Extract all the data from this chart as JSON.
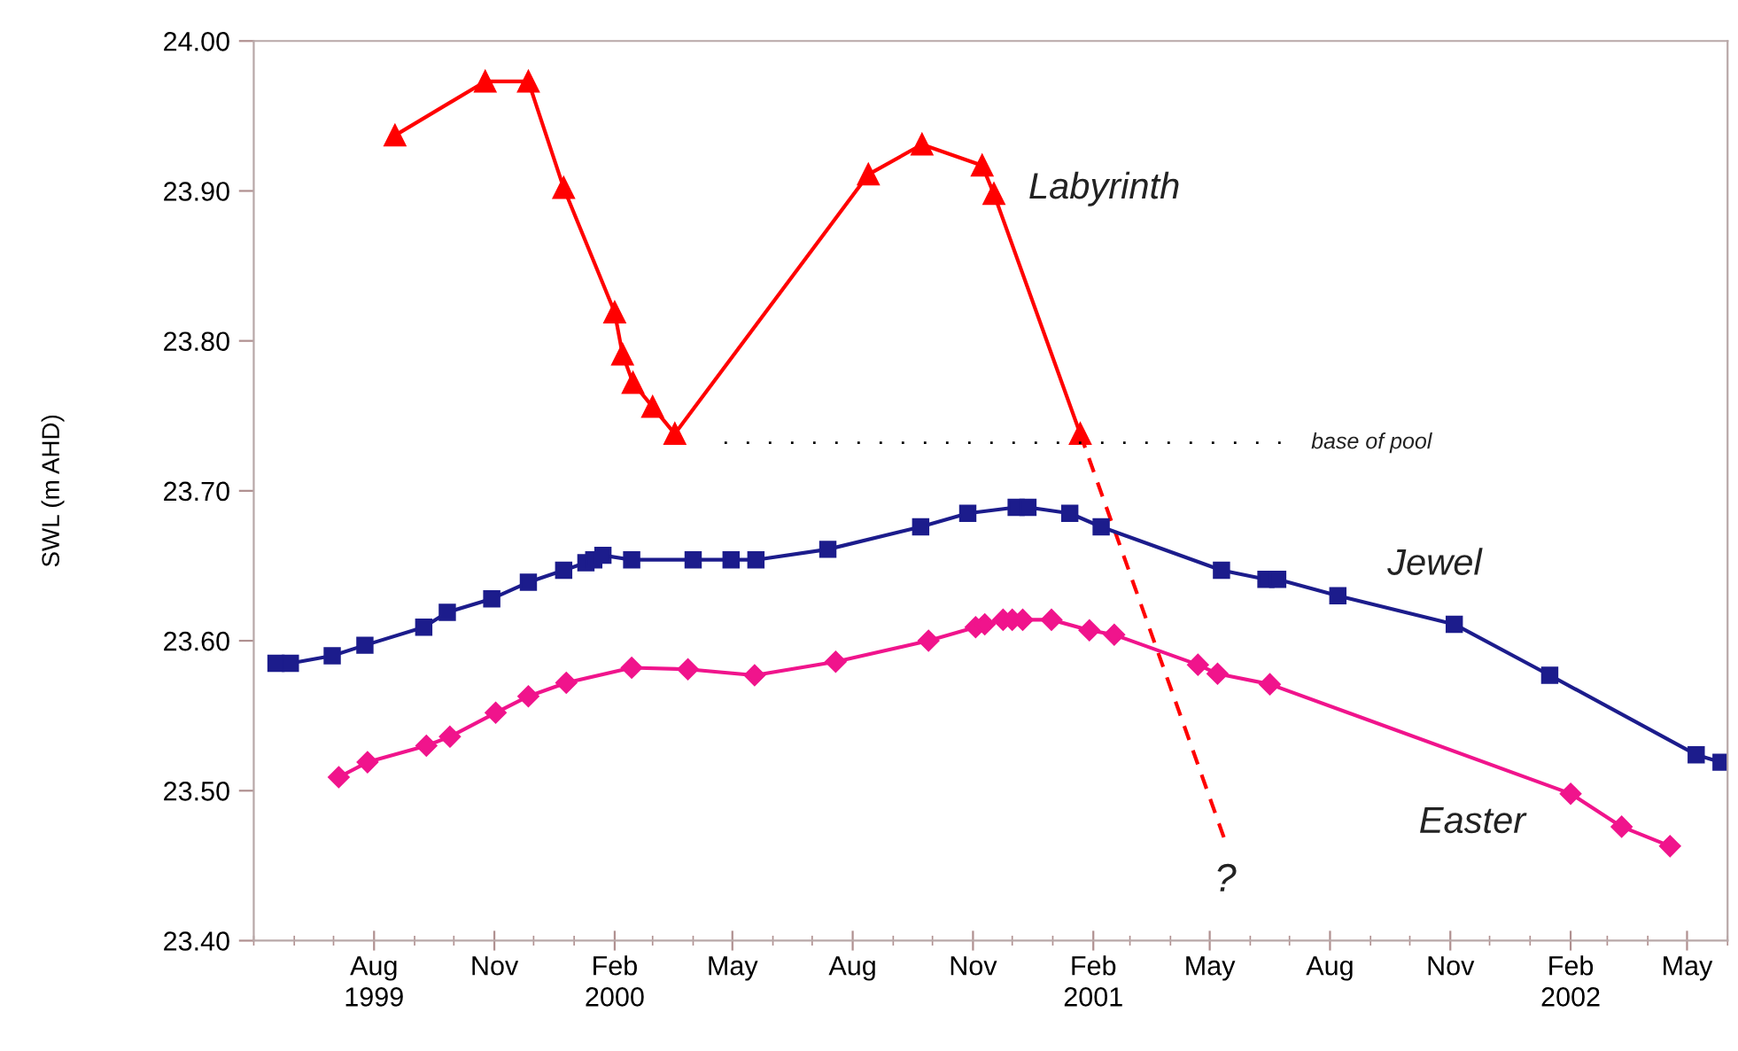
{
  "chart_data": {
    "type": "line",
    "ylabel": "SWL (m AHD)",
    "xlim": [
      "1999-05-01",
      "2002-06-01"
    ],
    "xticks": [
      {
        "value": "1999-08-01",
        "label": "Aug\n1999"
      },
      {
        "value": "1999-11-01",
        "label": "Nov"
      },
      {
        "value": "2000-02-01",
        "label": "Feb\n2000"
      },
      {
        "value": "2000-05-01",
        "label": "May"
      },
      {
        "value": "2000-08-01",
        "label": "Aug"
      },
      {
        "value": "2000-11-01",
        "label": "Nov"
      },
      {
        "value": "2001-02-01",
        "label": "Feb\n2001"
      },
      {
        "value": "2001-05-01",
        "label": "May"
      },
      {
        "value": "2001-08-01",
        "label": "Aug"
      },
      {
        "value": "2001-11-01",
        "label": "Nov"
      },
      {
        "value": "2002-02-01",
        "label": "Feb\n2002"
      },
      {
        "value": "2002-05-01",
        "label": "May"
      }
    ],
    "ylim": [
      23.4,
      24.0
    ],
    "yticks": [
      {
        "value": 23.4,
        "label": "23.40"
      },
      {
        "value": 23.5,
        "label": "23.50"
      },
      {
        "value": 23.6,
        "label": "23.60"
      },
      {
        "value": 23.7,
        "label": "23.70"
      },
      {
        "value": 23.8,
        "label": "23.80"
      },
      {
        "value": 23.9,
        "label": "23.90"
      },
      {
        "value": 24.0,
        "label": "24.00"
      }
    ],
    "grid": false,
    "series": [
      {
        "name": "Labyrinth",
        "color": "#ff0000",
        "marker": "triangle",
        "line_style": "solid",
        "x": [
          "1999-08-17",
          "1999-10-25",
          "1999-11-27",
          "1999-12-24",
          "2000-02-01",
          "2000-02-07",
          "2000-02-15",
          "2000-03-01",
          "2000-03-18",
          "2000-08-13",
          "2000-09-23",
          "2000-11-08",
          "2000-11-17",
          "2001-01-22"
        ],
        "values": [
          23.937,
          23.973,
          23.973,
          23.902,
          23.819,
          23.791,
          23.772,
          23.756,
          23.738,
          23.911,
          23.931,
          23.917,
          23.898,
          23.738
        ]
      },
      {
        "color": "#ff0000",
        "marker": "none",
        "line_style": "dashed",
        "x": [
          "2001-01-22",
          "2001-05-13"
        ],
        "values": [
          23.738,
          23.466
        ]
      },
      {
        "name": "base of pool",
        "color": "#000000",
        "marker": "none",
        "line_style": "dotted",
        "x": [
          "2000-04-25",
          "2001-06-25"
        ],
        "values": [
          23.732,
          23.732
        ]
      },
      {
        "name": "Jewel",
        "color": "#1c1c8c",
        "marker": "square",
        "line_style": "solid",
        "x": [
          "1999-05-18",
          "1999-05-29",
          "1999-06-30",
          "1999-07-25",
          "1999-09-08",
          "1999-09-26",
          "1999-10-30",
          "1999-11-27",
          "1999-12-24",
          "2000-01-10",
          "2000-01-16",
          "2000-01-23",
          "2000-02-14",
          "2000-04-01",
          "2000-04-30",
          "2000-05-19",
          "2000-07-13",
          "2000-09-22",
          "2000-10-28",
          "2000-12-04",
          "2000-12-13",
          "2001-01-14",
          "2001-02-07",
          "2001-05-10",
          "2001-06-13",
          "2001-06-22",
          "2001-08-07",
          "2001-11-04",
          "2002-01-16",
          "2002-05-08",
          "2002-05-27"
        ],
        "values": [
          23.585,
          23.585,
          23.59,
          23.597,
          23.609,
          23.619,
          23.628,
          23.639,
          23.647,
          23.652,
          23.654,
          23.657,
          23.654,
          23.654,
          23.654,
          23.654,
          23.661,
          23.676,
          23.685,
          23.689,
          23.689,
          23.685,
          23.676,
          23.647,
          23.641,
          23.641,
          23.63,
          23.611,
          23.577,
          23.524,
          23.519
        ]
      },
      {
        "name": "Easter",
        "color": "#f0148c",
        "marker": "diamond",
        "line_style": "solid",
        "x": [
          "1999-07-05",
          "1999-07-27",
          "1999-09-10",
          "1999-09-28",
          "1999-11-02",
          "1999-11-27",
          "1999-12-26",
          "2000-02-14",
          "2000-03-28",
          "2000-05-18",
          "2000-07-19",
          "2000-09-28",
          "2000-11-03",
          "2000-11-10",
          "2000-11-24",
          "2000-12-01",
          "2000-12-09",
          "2000-12-31",
          "2001-01-29",
          "2001-02-17",
          "2001-04-22",
          "2001-05-07",
          "2001-06-16",
          "2002-02-01",
          "2002-03-12",
          "2002-04-18"
        ],
        "values": [
          23.509,
          23.519,
          23.53,
          23.536,
          23.552,
          23.563,
          23.572,
          23.582,
          23.581,
          23.577,
          23.586,
          23.6,
          23.609,
          23.611,
          23.614,
          23.614,
          23.614,
          23.614,
          23.607,
          23.604,
          23.584,
          23.578,
          23.571,
          23.498,
          23.476,
          23.463
        ]
      }
    ],
    "annotations": [
      {
        "text": "?",
        "x": "2001-05-13",
        "y": 23.466
      }
    ]
  }
}
